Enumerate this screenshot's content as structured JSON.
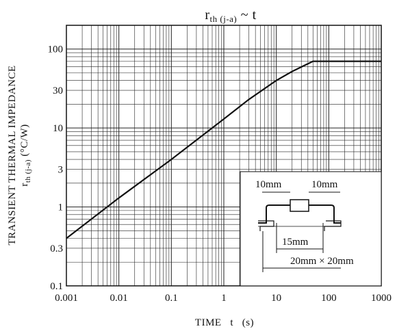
{
  "chart_data": {
    "type": "line",
    "title": {
      "main": "r",
      "sub": "th (j-a)",
      "tail": " ~ t"
    },
    "xlabel": "TIME   t   (s)",
    "ylabel": {
      "line1": "TRANSIENT THERMAL IMPEDANCE",
      "main": "r",
      "sub": "th (j-a)",
      "unit": "(°C/W)"
    },
    "x_scale": "log",
    "y_scale": "log",
    "xlim": [
      0.001,
      1000
    ],
    "ylim": [
      0.1,
      200
    ],
    "x_ticks": [
      {
        "value": 0.001,
        "label": "0.001"
      },
      {
        "value": 0.01,
        "label": "0.01"
      },
      {
        "value": 0.1,
        "label": "0.1"
      },
      {
        "value": 1,
        "label": "1"
      },
      {
        "value": 10,
        "label": "10"
      },
      {
        "value": 100,
        "label": "100"
      },
      {
        "value": 1000,
        "label": "1000"
      }
    ],
    "y_ticks": [
      {
        "value": 0.1,
        "label": "0.1"
      },
      {
        "value": 0.3,
        "label": "0.3"
      },
      {
        "value": 1,
        "label": "1"
      },
      {
        "value": 3,
        "label": "3"
      },
      {
        "value": 10,
        "label": "10"
      },
      {
        "value": 30,
        "label": "30"
      },
      {
        "value": 100,
        "label": "100"
      }
    ],
    "grid": true,
    "series": [
      {
        "x": [
          0.001,
          0.01,
          0.1,
          1,
          3,
          10,
          20,
          50,
          100,
          1000
        ],
        "y": [
          0.4,
          1.3,
          4.0,
          13,
          23,
          40,
          52,
          70,
          70,
          70
        ],
        "color": "#111111"
      }
    ],
    "inset": {
      "labels": {
        "left_pad": "10mm",
        "right_pad": "10mm",
        "lead_span": "15mm",
        "board": "20mm × 20mm"
      }
    }
  }
}
